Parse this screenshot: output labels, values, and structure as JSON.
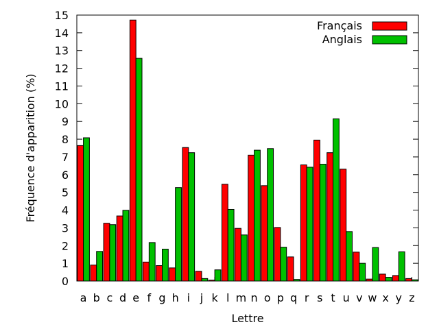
{
  "chart_data": {
    "type": "bar",
    "title": "",
    "xlabel": "Lettre",
    "ylabel": "Fréquence d'apparition (%)",
    "ylim": [
      0,
      15
    ],
    "yticks": [
      "0",
      "1",
      "2",
      "3",
      "4",
      "5",
      "6",
      "7",
      "8",
      "9",
      "10",
      "11",
      "12",
      "13",
      "14",
      "15"
    ],
    "grid": false,
    "legend_position": "top-right",
    "categories": [
      "a",
      "b",
      "c",
      "d",
      "e",
      "f",
      "g",
      "h",
      "i",
      "j",
      "k",
      "l",
      "m",
      "n",
      "o",
      "p",
      "q",
      "r",
      "s",
      "t",
      "u",
      "v",
      "w",
      "x",
      "y",
      "z"
    ],
    "series": [
      {
        "name": "Français",
        "color": "#ff0000",
        "values": [
          7.64,
          0.9,
          3.26,
          3.67,
          14.72,
          1.07,
          0.87,
          0.74,
          7.53,
          0.55,
          0.05,
          5.46,
          2.97,
          7.1,
          5.38,
          3.02,
          1.36,
          6.55,
          7.95,
          7.24,
          6.31,
          1.63,
          0.11,
          0.39,
          0.31,
          0.14
        ]
      },
      {
        "name": "Anglais",
        "color": "#00c000",
        "values": [
          8.08,
          1.67,
          3.18,
          3.99,
          12.56,
          2.17,
          1.8,
          5.27,
          7.24,
          0.14,
          0.63,
          4.04,
          2.6,
          7.38,
          7.47,
          1.91,
          0.09,
          6.42,
          6.59,
          9.15,
          2.79,
          1.0,
          1.89,
          0.21,
          1.65,
          0.07
        ]
      }
    ]
  }
}
